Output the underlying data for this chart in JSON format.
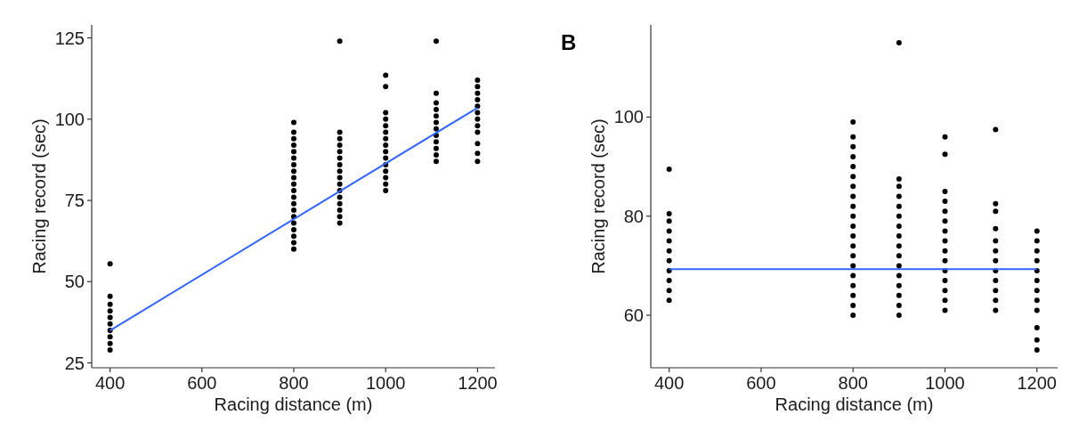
{
  "chart_data": [
    {
      "type": "scatter",
      "xlabel": "Racing distance (m)",
      "ylabel": "Racing record (sec)",
      "xlim": [
        360,
        1238
      ],
      "ylim": [
        23.5,
        129
      ],
      "xticks": [
        400,
        600,
        800,
        1000,
        1200
      ],
      "yticks": [
        25,
        50,
        75,
        100,
        125
      ],
      "marker": "circle",
      "series": [
        {
          "color": "#000000",
          "x": [
            400,
            400,
            400,
            400,
            400,
            400,
            400,
            400,
            400,
            400
          ],
          "values": [
            29,
            31,
            33,
            35,
            37,
            39,
            41,
            43,
            45.5,
            55.5
          ]
        },
        {
          "color": "#000000",
          "x": [
            800,
            800,
            800,
            800,
            800,
            800,
            800,
            800,
            800,
            800,
            800,
            800,
            800,
            800,
            800,
            800,
            800,
            800,
            800,
            800
          ],
          "values": [
            60,
            62,
            64,
            66,
            68,
            70,
            72,
            74,
            76,
            78,
            80,
            82,
            84,
            86,
            88,
            90,
            92,
            94,
            96,
            99
          ]
        },
        {
          "color": "#000000",
          "x": [
            900,
            900,
            900,
            900,
            900,
            900,
            900,
            900,
            900,
            900,
            900,
            900,
            900,
            900,
            900,
            900
          ],
          "values": [
            68,
            70,
            72,
            74,
            76,
            78,
            80,
            82,
            84,
            86,
            88,
            90,
            92,
            94,
            96,
            124
          ]
        },
        {
          "color": "#000000",
          "x": [
            1000,
            1000,
            1000,
            1000,
            1000,
            1000,
            1000,
            1000,
            1000,
            1000,
            1000,
            1000,
            1000,
            1000,
            1000
          ],
          "values": [
            78,
            80,
            82,
            84,
            86,
            88,
            90,
            92,
            94,
            96,
            98,
            100,
            102,
            110,
            113.5
          ]
        },
        {
          "color": "#000000",
          "x": [
            1110,
            1110,
            1110,
            1110,
            1110,
            1110,
            1110,
            1110,
            1110,
            1110,
            1110,
            1110
          ],
          "values": [
            87,
            89,
            91,
            93,
            95,
            97,
            99,
            101,
            103,
            105,
            108,
            124
          ]
        },
        {
          "color": "#000000",
          "x": [
            1200,
            1200,
            1200,
            1200,
            1200,
            1200,
            1200,
            1200,
            1200,
            1200,
            1200,
            1200
          ],
          "values": [
            87,
            89.5,
            92.5,
            96,
            98,
            100,
            102,
            104,
            106,
            108,
            110,
            112
          ]
        },
        {
          "type": "line",
          "marker": "none",
          "color": "#3366ff",
          "x": [
            400,
            1200
          ],
          "values": [
            35,
            103.5
          ]
        }
      ]
    },
    {
      "type": "scatter",
      "title": "B",
      "xlabel": "Racing distance (m)",
      "ylabel": "Racing record (sec)",
      "xlim": [
        360,
        1245
      ],
      "ylim": [
        49.4,
        118.6
      ],
      "xticks": [
        400,
        600,
        800,
        1000,
        1200
      ],
      "yticks": [
        60,
        80,
        100
      ],
      "marker": "circle",
      "series": [
        {
          "color": "#000000",
          "x": [
            400,
            400,
            400,
            400,
            400,
            400,
            400,
            400,
            400,
            400,
            400
          ],
          "values": [
            63,
            65,
            67,
            69,
            71,
            73,
            75,
            77,
            79,
            80.5,
            89.5
          ]
        },
        {
          "color": "#000000",
          "x": [
            800,
            800,
            800,
            800,
            800,
            800,
            800,
            800,
            800,
            800,
            800,
            800,
            800,
            800,
            800,
            800,
            800,
            800,
            800,
            800
          ],
          "values": [
            60,
            62,
            64,
            66,
            68,
            70,
            72,
            74,
            76,
            78,
            80,
            82,
            84,
            86,
            88,
            90,
            92,
            94,
            96,
            99
          ]
        },
        {
          "color": "#000000",
          "x": [
            900,
            900,
            900,
            900,
            900,
            900,
            900,
            900,
            900,
            900,
            900,
            900,
            900,
            900,
            900,
            900
          ],
          "values": [
            60,
            62,
            64,
            66,
            68,
            70,
            72,
            74,
            76,
            78,
            80,
            82,
            84,
            86,
            87.5,
            115
          ]
        },
        {
          "color": "#000000",
          "x": [
            1000,
            1000,
            1000,
            1000,
            1000,
            1000,
            1000,
            1000,
            1000,
            1000,
            1000,
            1000,
            1000,
            1000,
            1000
          ],
          "values": [
            61,
            63,
            65,
            67,
            69,
            71,
            73,
            75,
            77,
            79,
            81,
            83,
            85,
            92.5,
            96
          ]
        },
        {
          "color": "#000000",
          "x": [
            1110,
            1110,
            1110,
            1110,
            1110,
            1110,
            1110,
            1110,
            1110,
            1110,
            1110,
            1110
          ],
          "values": [
            61,
            63,
            65,
            67,
            69,
            71,
            73,
            75,
            77.5,
            81,
            82.5,
            97.5
          ]
        },
        {
          "color": "#000000",
          "x": [
            1200,
            1200,
            1200,
            1200,
            1200,
            1200,
            1200,
            1200,
            1200,
            1200,
            1200,
            1200
          ],
          "values": [
            53,
            55,
            57.5,
            61,
            63,
            65,
            67,
            69,
            71,
            73,
            75,
            77
          ]
        },
        {
          "type": "line",
          "marker": "none",
          "color": "#3366ff",
          "x": [
            400,
            1200
          ],
          "values": [
            69.3,
            69.3
          ]
        }
      ]
    }
  ]
}
